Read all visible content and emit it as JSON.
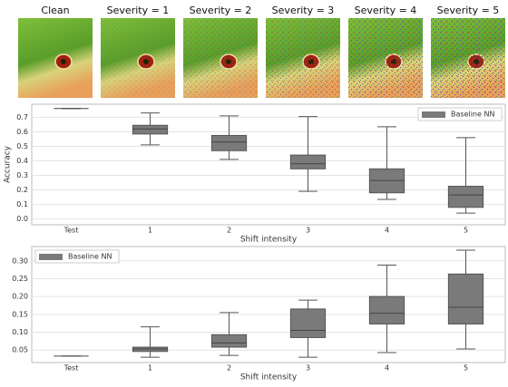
{
  "images": {
    "titles": [
      "Clean",
      "Severity = 1",
      "Severity = 2",
      "Severity = 3",
      "Severity = 4",
      "Severity = 5"
    ]
  },
  "chart_data": [
    {
      "type": "box",
      "xlabel": "Shift intensity",
      "ylabel": "Accuracy",
      "categories": [
        "Test",
        "1",
        "2",
        "3",
        "4",
        "5"
      ],
      "ylim": [
        -0.04,
        0.79
      ],
      "yticks": [
        {
          "value": 0,
          "label": "0.0"
        },
        0.1,
        0.2,
        0.3,
        0.4,
        0.5,
        0.6,
        0.7
      ],
      "grid": true,
      "legend": "upper right",
      "series": [
        {
          "name": "Baseline NN",
          "color": "#7a7a7a",
          "whislo": [
            0.76,
            0.51,
            0.41,
            0.19,
            0.135,
            0.04
          ],
          "q1": [
            0.76,
            0.585,
            0.47,
            0.345,
            0.18,
            0.08
          ],
          "median": [
            0.76,
            0.62,
            0.53,
            0.38,
            0.265,
            0.165
          ],
          "q3": [
            0.76,
            0.645,
            0.575,
            0.44,
            0.345,
            0.225
          ],
          "whishi": [
            0.76,
            0.73,
            0.71,
            0.705,
            0.635,
            0.56
          ]
        }
      ]
    },
    {
      "type": "box",
      "xlabel": "Shift intensity",
      "categories": [
        "Test",
        "1",
        "2",
        "3",
        "4",
        "5"
      ],
      "ylim": [
        0.015,
        0.34
      ],
      "yticks": [
        0.05,
        {
          "value": 0.1,
          "label": "0.10"
        },
        0.15,
        {
          "value": 0.2,
          "label": "0.20"
        },
        0.25,
        {
          "value": 0.3,
          "label": "0.30"
        }
      ],
      "grid": true,
      "legend": "upper left",
      "series": [
        {
          "name": "Baseline NN",
          "color": "#7a7a7a",
          "whislo": [
            0.033,
            0.03,
            0.035,
            0.03,
            0.043,
            0.053
          ],
          "q1": [
            0.033,
            0.046,
            0.058,
            0.085,
            0.123,
            0.123
          ],
          "median": [
            0.033,
            0.053,
            0.07,
            0.105,
            0.153,
            0.17
          ],
          "q3": [
            0.033,
            0.058,
            0.093,
            0.165,
            0.2,
            0.263
          ],
          "whishi": [
            0.033,
            0.115,
            0.155,
            0.19,
            0.288,
            0.33
          ]
        }
      ]
    }
  ]
}
